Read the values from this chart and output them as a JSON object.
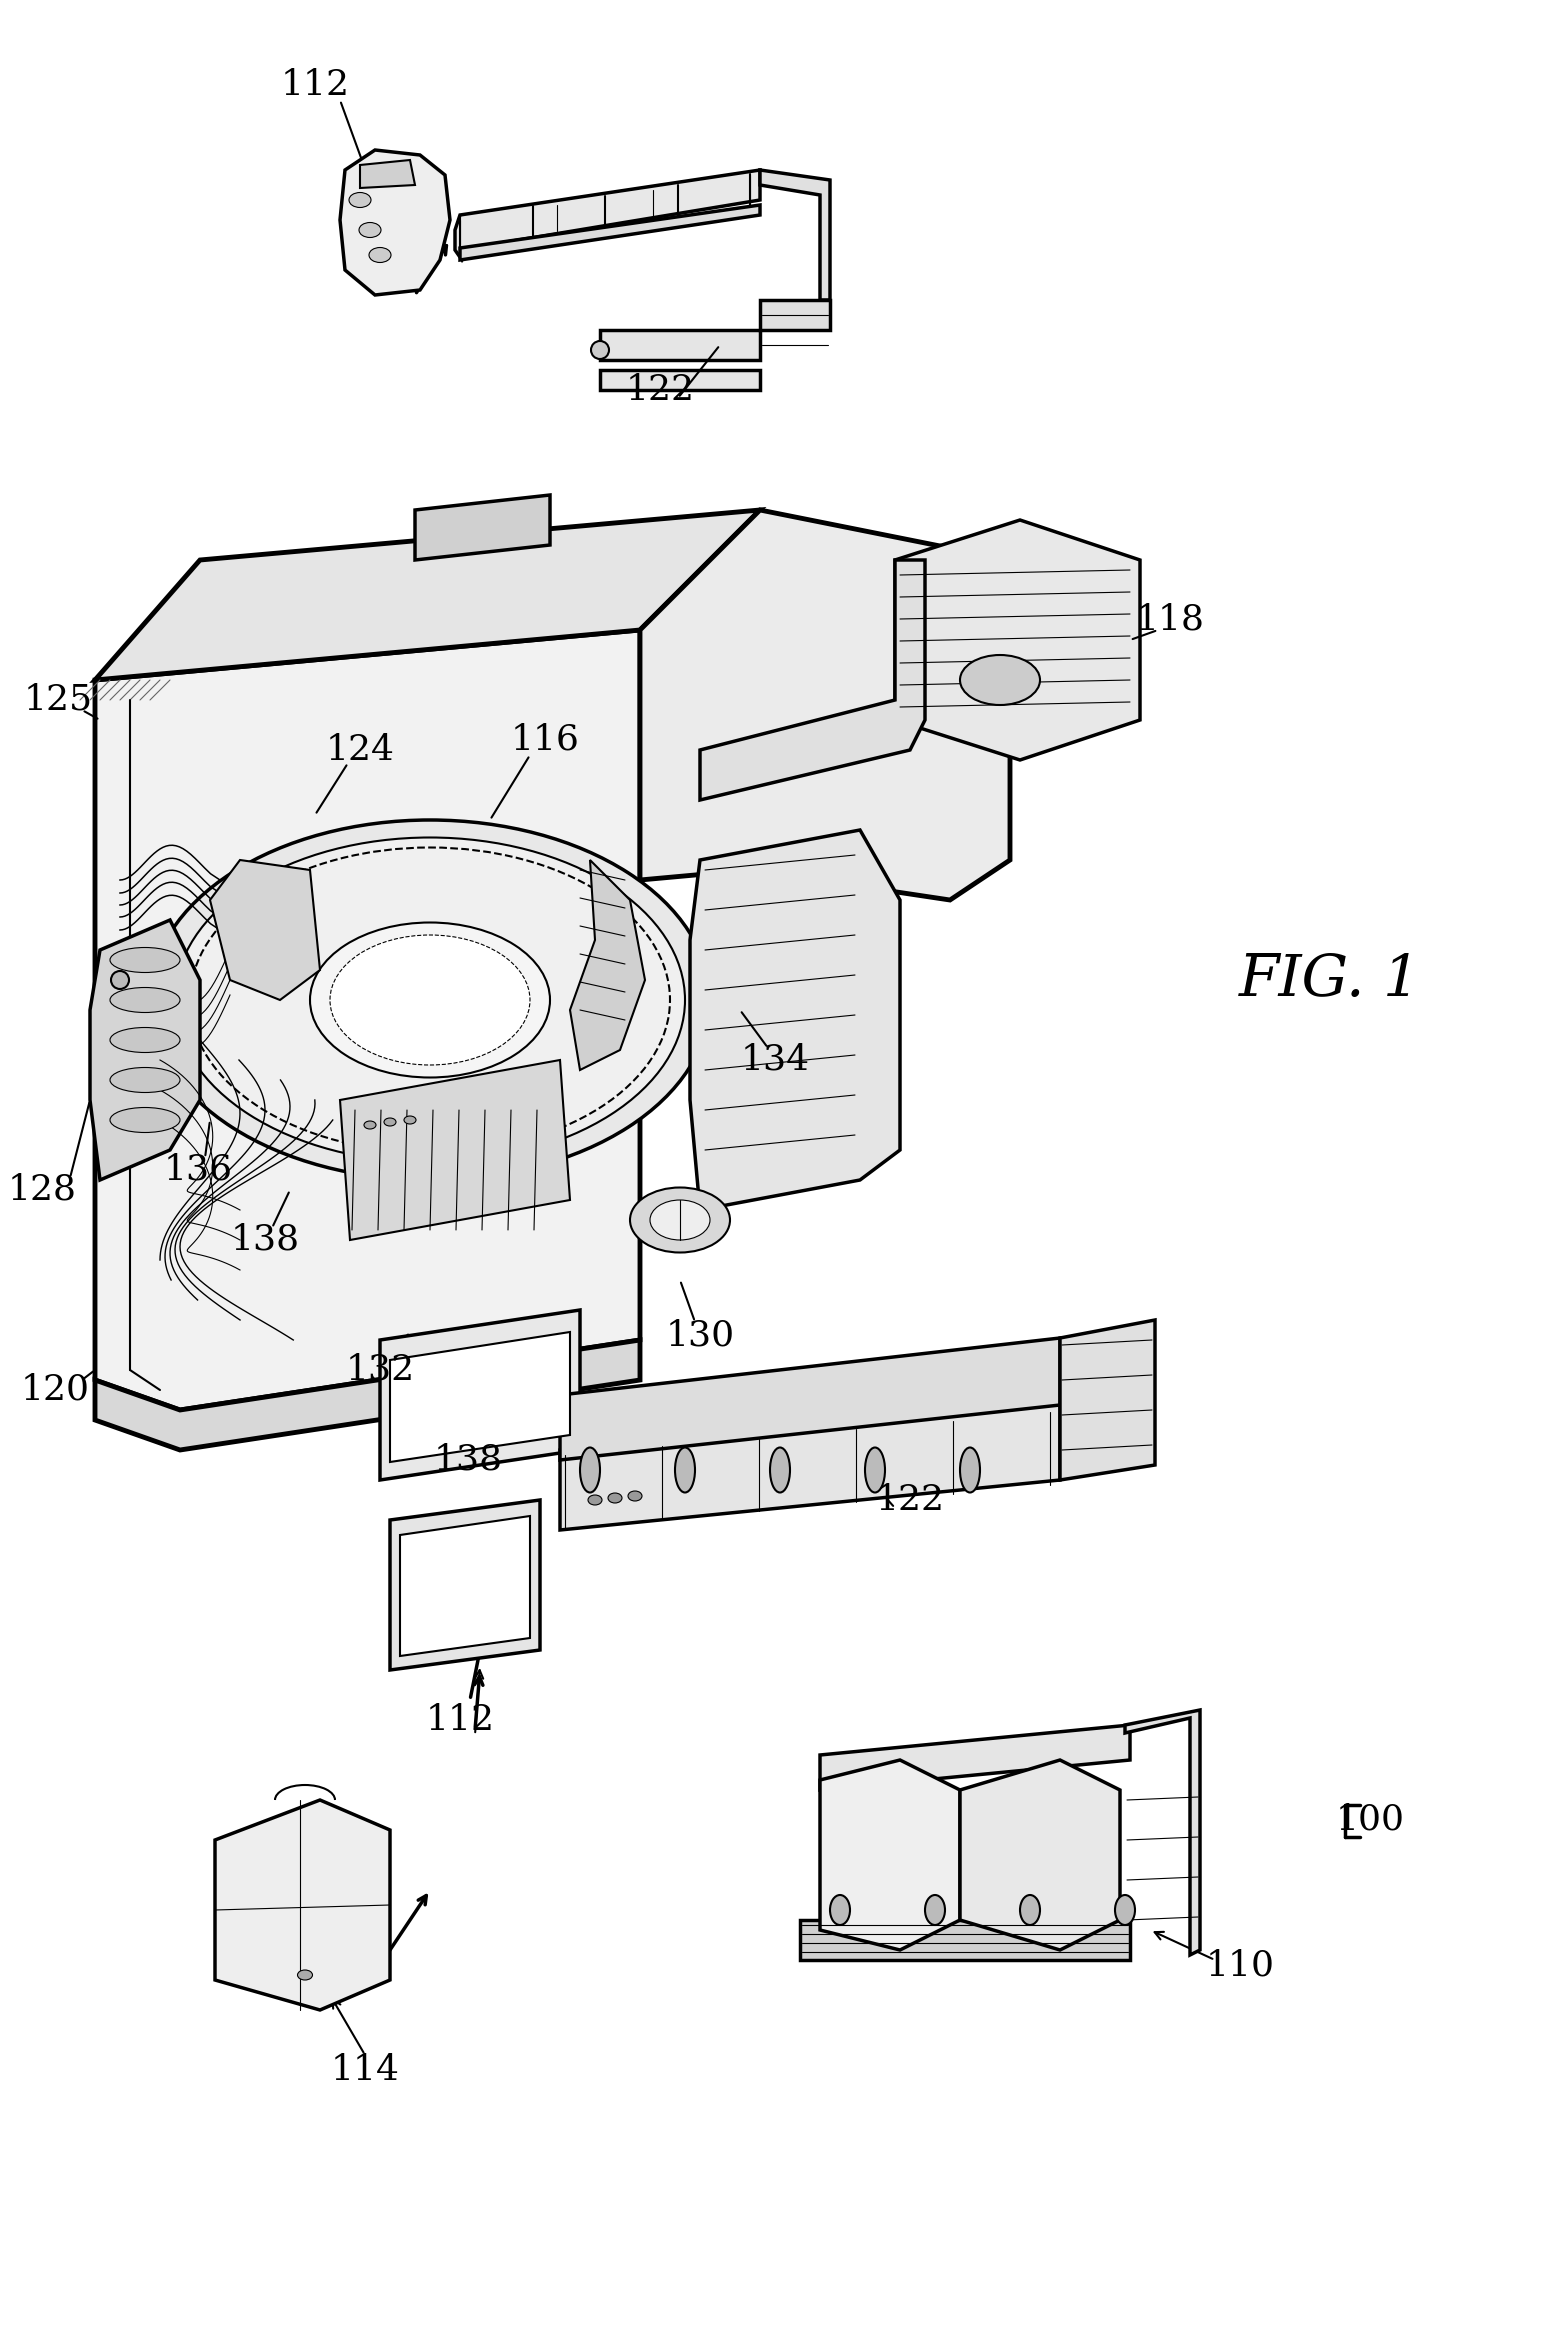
{
  "background_color": "#ffffff",
  "line_color": "#000000",
  "fig_width": 15.64,
  "fig_height": 23.49,
  "dpi": 100,
  "fig1_label": "FIG. 1",
  "ref_100": "100",
  "ref_110": "110",
  "ref_112a": "112",
  "ref_112b": "112",
  "ref_114": "114",
  "ref_116": "116",
  "ref_118": "118",
  "ref_120": "120",
  "ref_122a": "122",
  "ref_122b": "122",
  "ref_124": "124",
  "ref_125": "125",
  "ref_128": "128",
  "ref_130": "130",
  "ref_132": "132",
  "ref_134": "134",
  "ref_136": "136",
  "ref_138a": "138",
  "ref_138b": "138"
}
